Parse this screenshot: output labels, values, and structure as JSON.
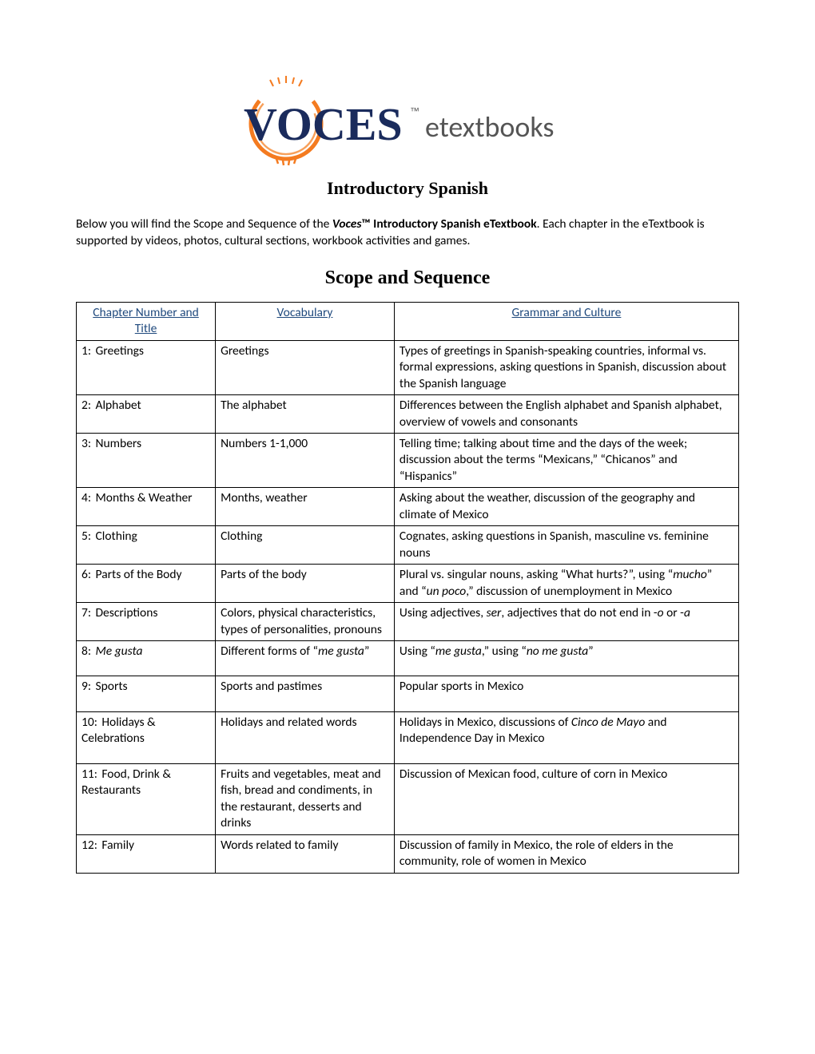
{
  "logo": {
    "voces_text": "VOCES",
    "tm": "™",
    "etextbooks": "etextbooks",
    "circle_color": "#f47b20",
    "voces_color": "#1a2b5c",
    "etext_color": "#555555"
  },
  "subtitle": "Introductory Spanish",
  "intro": {
    "pre": "Below you will find the Scope and Sequence of the ",
    "brand": "Voces",
    "bold": "™ Introductory Spanish eTextbook",
    "post": ". Each chapter in the eTextbook is supported by videos, photos, cultural sections, workbook activities and games."
  },
  "section_heading": "Scope and Sequence",
  "table": {
    "headers": {
      "chapter": "Chapter Number and Title",
      "vocab": "Vocabulary",
      "grammar": "Grammar and Culture"
    },
    "rows": [
      {
        "num": "1:",
        "title": "Greetings",
        "vocab": "Greetings",
        "grammar": "Types of greetings in Spanish-speaking countries, informal vs. formal expressions, asking questions in Spanish, discussion about the Spanish language"
      },
      {
        "num": "2:",
        "title": "Alphabet",
        "vocab": "The alphabet",
        "grammar": "Differences between the English alphabet and Spanish alphabet, overview of vowels and consonants"
      },
      {
        "num": "3:",
        "title": "Numbers",
        "vocab": "Numbers 1-1,000",
        "grammar": "Telling time; talking about time and the days of the week; discussion about the terms “Mexicans,” “Chicanos” and “Hispanics”"
      },
      {
        "num": "4:",
        "title": "Months & Weather",
        "vocab": "Months, weather",
        "grammar": "Asking about the weather, discussion of the geography and climate of Mexico"
      },
      {
        "num": "5:",
        "title": "Clothing",
        "vocab": "Clothing",
        "grammar": "Cognates, asking questions in Spanish, masculine vs. feminine nouns"
      },
      {
        "num": "6:",
        "title": "Parts of the Body",
        "vocab": "Parts of the body",
        "grammar_html": "Plural vs. singular nouns, asking “What hurts?”, using “<i>mucho</i>” and “<i>un poco</i>,” discussion of unemployment in Mexico"
      },
      {
        "num": "7:",
        "title": "Descriptions",
        "vocab": "Colors, physical characteristics, types of personalities, pronouns",
        "grammar_html": "Using adjectives, <i>ser</i>, adjectives that do not end in -<i>o</i> or -<i>a</i>"
      },
      {
        "num": "8:",
        "title_html": "<i>Me gusta</i>",
        "vocab_html": "Different forms of “<i>me gusta</i>”",
        "grammar_html": "Using “<i>me gusta</i>,” using “<i>no me gusta</i>”",
        "tall": true
      },
      {
        "num": "9:",
        "title": "Sports",
        "vocab": "Sports and pastimes",
        "grammar": "Popular sports in Mexico",
        "tall": true
      },
      {
        "num": "10:",
        "title": "Holidays & Celebrations",
        "vocab": "Holidays and related words",
        "grammar_html": "Holidays in Mexico, discussions of <i>Cinco de Mayo</i> and Independence Day in Mexico",
        "tall": true
      },
      {
        "num": "11:",
        "title": "Food, Drink & Restaurants",
        "vocab": "Fruits and vegetables, meat and fish, bread and condiments, in the restaurant, desserts and drinks",
        "grammar": "Discussion of Mexican food, culture of corn in Mexico"
      },
      {
        "num": "12:",
        "title": "Family",
        "vocab": "Words related to family",
        "grammar": "Discussion of family in Mexico, the role of elders in the community, role of women in Mexico"
      }
    ]
  }
}
